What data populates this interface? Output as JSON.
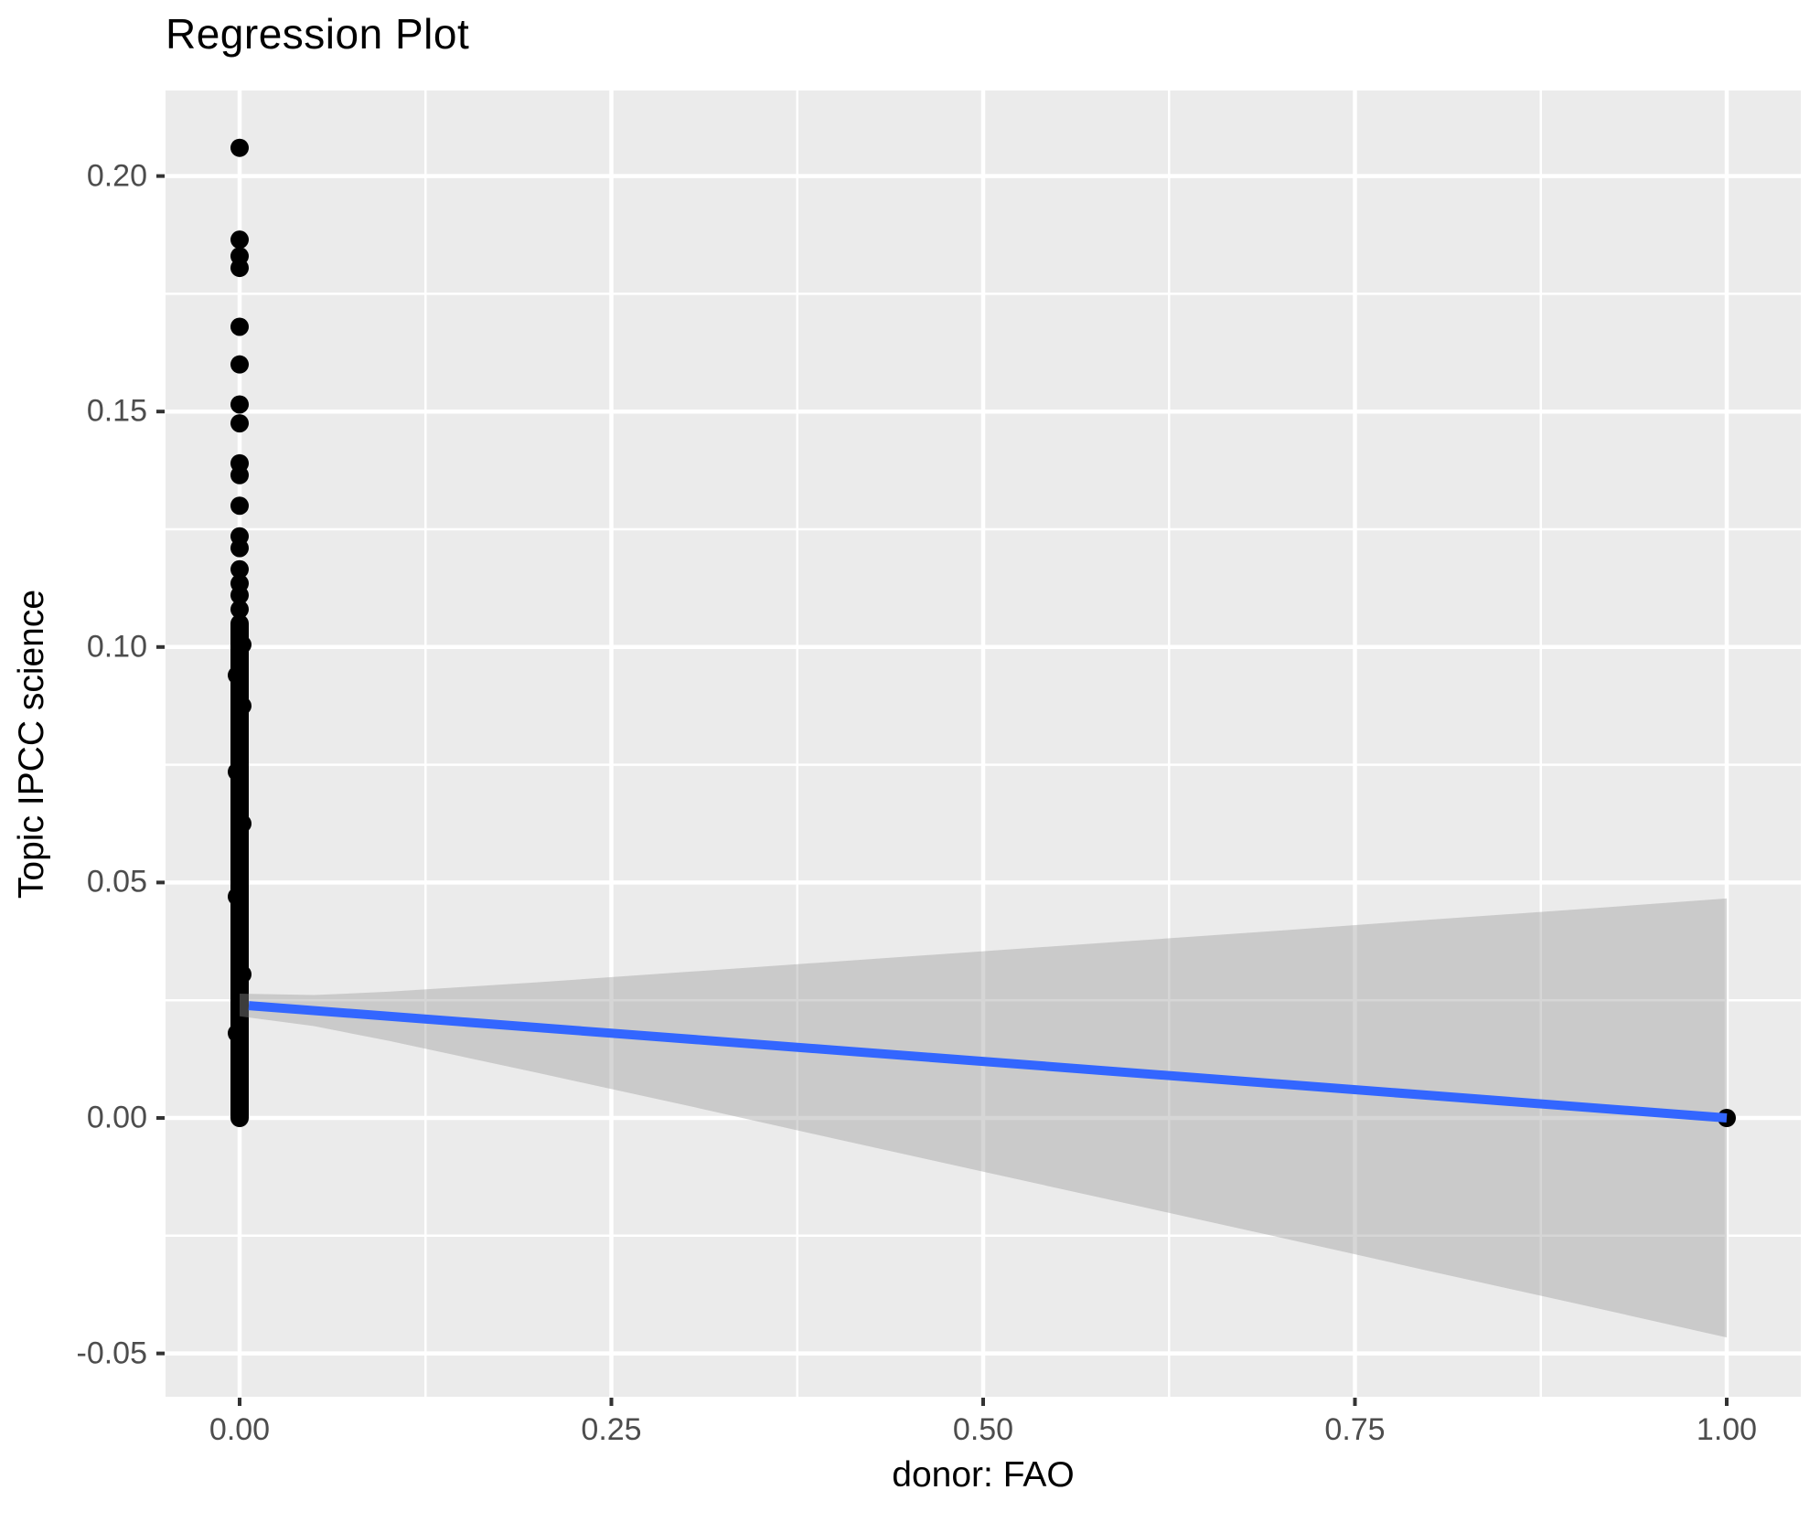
{
  "chart_data": {
    "type": "scatter",
    "title": "Regression Plot",
    "xlabel": "donor: FAO",
    "ylabel": "Topic IPCC science",
    "x_ticks": {
      "values": [
        0,
        0.25,
        0.5,
        0.75,
        1
      ],
      "labels": [
        "0.00",
        "0.25",
        "0.50",
        "0.75",
        "1.00"
      ]
    },
    "y_ticks": {
      "values": [
        -0.05,
        0,
        0.05,
        0.1,
        0.15,
        0.2
      ],
      "labels": [
        "-0.05",
        "0.00",
        "0.05",
        "0.10",
        "0.15",
        "0.20"
      ]
    },
    "x_minor_gridlines": [
      0.125,
      0.375,
      0.625,
      0.875
    ],
    "y_minor_gridlines": [
      -0.025,
      0.025,
      0.075,
      0.125,
      0.175
    ],
    "xlim": [
      -0.05,
      1.05
    ],
    "ylim": [
      -0.0592,
      0.2185
    ],
    "grid": "major+minor, white on gray panel",
    "legend": "none",
    "series": [
      {
        "name": "observations at donor=0",
        "kind": "points",
        "x": 0,
        "discrete_y": [
          0.206,
          0.1865,
          0.183,
          0.1805,
          0.168,
          0.16,
          0.1515,
          0.1475,
          0.139,
          0.1365,
          0.13,
          0.1235,
          0.121,
          0.1165,
          0.1135,
          0.111,
          0.108
        ],
        "dense_column": {
          "y_from": 0.0,
          "y_to": 0.105,
          "note": "hundreds of overlapping points forming a solid bar"
        },
        "column_bumps": [
          [
            0.1005,
            3
          ],
          [
            0.094,
            -3
          ],
          [
            0.0875,
            3
          ],
          [
            0.0735,
            -3
          ],
          [
            0.0625,
            3
          ],
          [
            0.047,
            -3
          ],
          [
            0.0305,
            3
          ],
          [
            0.018,
            -3
          ]
        ]
      },
      {
        "name": "observation at donor=1",
        "kind": "point",
        "x": 1.0,
        "y": 0.0
      }
    ],
    "regression_line": {
      "x": [
        0,
        1
      ],
      "y": [
        0.024,
        0.0
      ]
    },
    "ci_band": [
      [
        0.0,
        0.0216,
        0.0264
      ],
      [
        0.05,
        0.0195,
        0.0261
      ],
      [
        0.1,
        0.0164,
        0.0268
      ],
      [
        0.15,
        0.013,
        0.0278
      ],
      [
        0.2,
        0.0096,
        0.0288
      ],
      [
        0.3,
        0.0027,
        0.031
      ],
      [
        0.4,
        -0.0044,
        0.0332
      ],
      [
        0.5,
        -0.0114,
        0.0354
      ],
      [
        0.6,
        -0.0184,
        0.0376
      ],
      [
        0.7,
        -0.0254,
        0.0398
      ],
      [
        0.8,
        -0.0325,
        0.0421
      ],
      [
        0.9,
        -0.0395,
        0.0443
      ],
      [
        1.0,
        -0.0466,
        0.0466
      ]
    ],
    "colors": {
      "panel_bg": "#EBEBEB",
      "gridline": "#FFFFFF",
      "point": "#000000",
      "line": "#3366FF",
      "band_fill": "#999999",
      "band_alpha": 0.4,
      "tick_text": "#4D4D4D",
      "tick_mark": "#333333",
      "title_text": "#000000"
    },
    "point_radius_px": 10
  }
}
